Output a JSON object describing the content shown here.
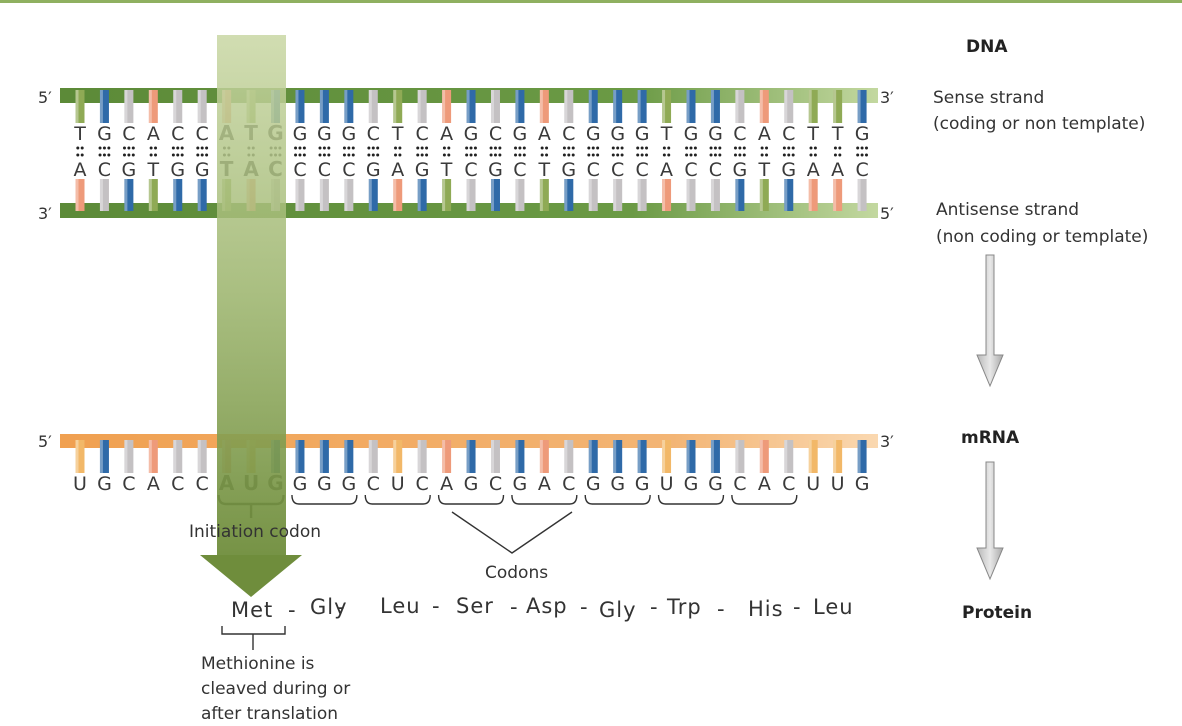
{
  "titles": {
    "dna": "DNA",
    "mrna": "mRNA",
    "protein": "Protein"
  },
  "ends": {
    "five": "5′",
    "three": "3′"
  },
  "labels": {
    "sense_1": "Sense strand",
    "sense_2": "(coding or non template)",
    "antisense_1": "Antisense strand",
    "antisense_2": "(non coding or template)",
    "initiation": "Initiation codon",
    "codons": "Codons",
    "methionine_1": "Methionine is",
    "methionine_2": "cleaved during or",
    "methionine_3": "after translation"
  },
  "sequences": {
    "sense": [
      "T",
      "G",
      "C",
      "A",
      "C",
      "C",
      "A",
      "T",
      "G",
      "G",
      "G",
      "G",
      "C",
      "T",
      "C",
      "A",
      "G",
      "C",
      "G",
      "A",
      "C",
      "G",
      "G",
      "G",
      "T",
      "G",
      "G",
      "C",
      "A",
      "C",
      "T",
      "T",
      "G"
    ],
    "antisense": [
      "A",
      "C",
      "G",
      "T",
      "G",
      "G",
      "T",
      "A",
      "C",
      "C",
      "C",
      "C",
      "G",
      "A",
      "G",
      "T",
      "C",
      "G",
      "C",
      "T",
      "G",
      "C",
      "C",
      "C",
      "A",
      "C",
      "C",
      "G",
      "T",
      "G",
      "A",
      "A",
      "C"
    ],
    "mrna": [
      "U",
      "G",
      "C",
      "A",
      "C",
      "C",
      "A",
      "U",
      "G",
      "G",
      "G",
      "G",
      "C",
      "U",
      "C",
      "A",
      "G",
      "C",
      "G",
      "A",
      "C",
      "G",
      "G",
      "G",
      "U",
      "G",
      "G",
      "C",
      "A",
      "C",
      "U",
      "U",
      "G"
    ]
  },
  "protein": [
    "Met",
    "-",
    "Gly",
    "-",
    "Leu",
    "-",
    "Ser",
    "-",
    "Asp",
    "-",
    "Gly",
    "-",
    "Trp",
    "-",
    "His",
    "-",
    "Leu"
  ],
  "colors": {
    "A": "#ee9a7a",
    "T": "#8faa55",
    "U": "#f2b868",
    "G": "#2f6aa8",
    "C": "#c4c1c3",
    "dna_backbone": "#5f8f3a",
    "mrna_backbone": "#f0a050",
    "highlight": "#7f9b45",
    "arrow": "#c8c8c8"
  }
}
